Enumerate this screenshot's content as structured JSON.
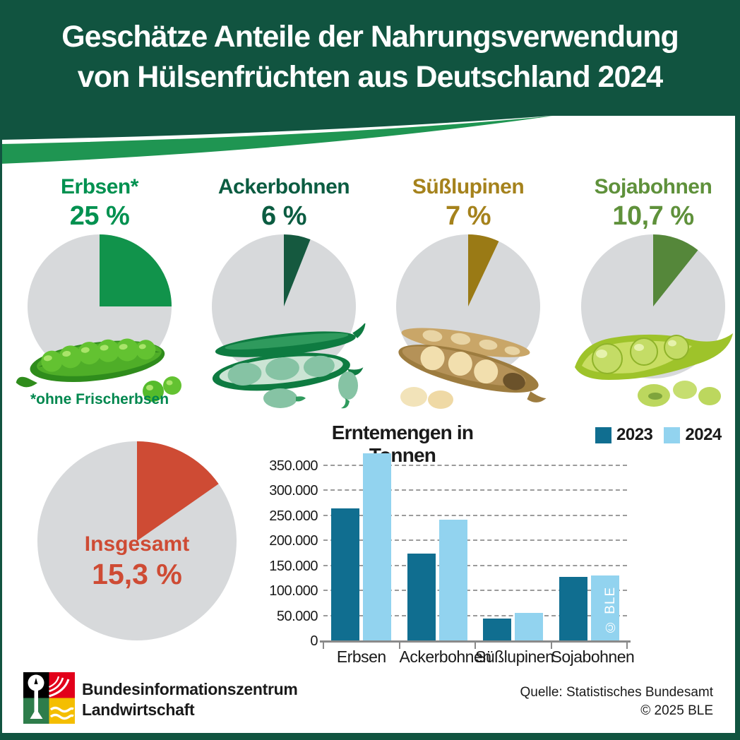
{
  "frame": {
    "border_color": "#115440"
  },
  "header": {
    "title_line1": "Geschätze Anteile der Nahrungsverwendung",
    "title_line2": "von Hülsenfrüchten aus Deutschland 2024",
    "bg_color": "#115440",
    "swoosh_color": "#1F9552"
  },
  "pie_track_color": "#D7D9DB",
  "pies": [
    {
      "label": "Erbsen*",
      "percent_label": "25 %",
      "percent": 25,
      "color": "#11934B",
      "label_color": "#009150",
      "footnote": "*ohne Frischerbsen",
      "footnote_color": "#00874E",
      "icon": "pea-pod-illustration"
    },
    {
      "label": "Ackerbohnen",
      "percent_label": "6 %",
      "percent": 6,
      "color": "#15593F",
      "label_color": "#0B5C41",
      "icon": "faba-bean-illustration"
    },
    {
      "label": "Süßlupinen",
      "percent_label": "7 %",
      "percent": 7,
      "color": "#9A7A15",
      "label_color": "#A5821C",
      "icon": "lupin-pod-illustration"
    },
    {
      "label": "Sojabohnen",
      "percent_label": "10,7 %",
      "percent": 10.7,
      "color": "#55873A",
      "label_color": "#5F913B",
      "icon": "soybean-pod-illustration"
    }
  ],
  "total_pie": {
    "label": "Insgesamt",
    "percent_label": "15,3 %",
    "percent": 15.3,
    "color": "#CE4B34",
    "label_color": "#CE4B34"
  },
  "chart_data": {
    "type": "bar",
    "title": "Erntemengen in Tonnen",
    "categories": [
      "Erbsen",
      "Ackerbohnen",
      "Süßlupinen",
      "Sojabohnen"
    ],
    "series": [
      {
        "name": "2023",
        "color": "#106E90",
        "values": [
          265000,
          175000,
          45000,
          129000
        ]
      },
      {
        "name": "2024",
        "color": "#92D3EF",
        "values": [
          375000,
          243000,
          57000,
          131000
        ]
      }
    ],
    "xlabel": "",
    "ylabel": "",
    "ylim": [
      0,
      380000
    ],
    "ytick_step": 50000,
    "ytick_labels": [
      "0",
      "50.000",
      "100.000",
      "150.000",
      "200.000",
      "250.000",
      "300.000",
      "350.000"
    ],
    "grid": "dashed horizontal",
    "legend_position": "top-right",
    "watermark": "© BLE"
  },
  "footer": {
    "org_line1": "Bundesinformationszentrum",
    "org_line2": "Landwirtschaft",
    "source_line1": "Quelle: Statistisches Bundesamt",
    "source_line2": "© 2025 BLE",
    "logo_colors": {
      "black": "#000000",
      "red": "#E2001A",
      "green": "#2E7D4B",
      "yellow": "#F4BE00"
    }
  }
}
